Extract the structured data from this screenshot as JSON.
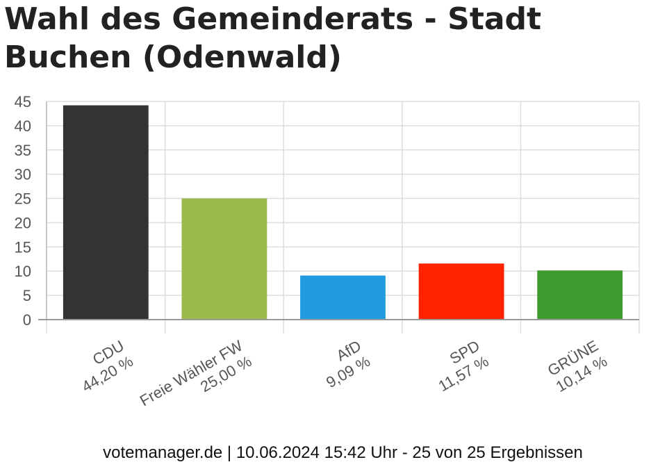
{
  "chart_data": {
    "type": "bar",
    "title": "Wahl des Gemeinderats - Stadt Buchen (Odenwald)",
    "categories": [
      "CDU",
      "Freie Wähler FW",
      "AfD",
      "SPD",
      "GRÜNE"
    ],
    "value_labels": [
      "44,20 %",
      "25,00 %",
      "9,09 %",
      "11,57 %",
      "10,14 %"
    ],
    "values": [
      44.2,
      25.0,
      9.09,
      11.57,
      10.14
    ],
    "colors": [
      "#333333",
      "#99bb4b",
      "#219be0",
      "#ff2200",
      "#3f9b2d"
    ],
    "ylim": [
      0,
      45
    ],
    "yticks": [
      0,
      5,
      10,
      15,
      20,
      25,
      30,
      35,
      40,
      45
    ],
    "grid": true,
    "xlabel": "",
    "ylabel": ""
  },
  "footer": {
    "text": "votemanager.de | 10.06.2024 15:42 Uhr - 25 von 25 Ergebnissen"
  }
}
